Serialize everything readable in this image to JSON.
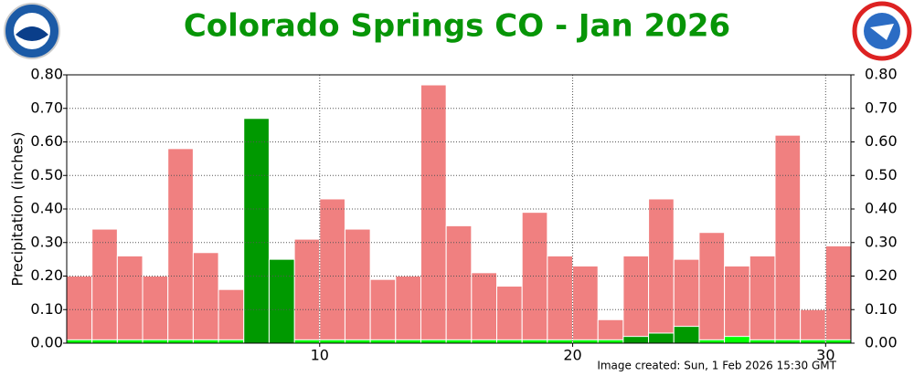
{
  "chart_data": {
    "type": "bar",
    "title": "Colorado Springs CO - Jan 2026",
    "y_label": "Precipitation (inches)",
    "footer": "Image created: Sun, 1 Feb 2026 15:30 GMT",
    "x": [
      1,
      2,
      3,
      4,
      5,
      6,
      7,
      8,
      9,
      10,
      11,
      12,
      13,
      14,
      15,
      16,
      17,
      18,
      19,
      20,
      21,
      22,
      23,
      24,
      25,
      26,
      27,
      28,
      29,
      30,
      31
    ],
    "xlim": [
      0,
      31
    ],
    "xticks": [
      10,
      20,
      30
    ],
    "ylim": [
      0,
      0.8
    ],
    "yticks": [
      {
        "value": 0,
        "label": "0.00"
      },
      {
        "value": 0.1,
        "label": "0.10"
      },
      {
        "value": 0.2,
        "label": "0.20"
      },
      {
        "value": 0.3,
        "label": "0.30"
      },
      {
        "value": 0.4,
        "label": "0.40"
      },
      {
        "value": 0.5,
        "label": "0.50"
      },
      {
        "value": 0.6,
        "label": "0.60"
      },
      {
        "value": 0.7,
        "label": "0.70"
      },
      {
        "value": 0.8,
        "label": "0.80"
      }
    ],
    "grid": true,
    "series": [
      {
        "color": "#f08080",
        "values": [
          0.2,
          0.34,
          0.26,
          0.2,
          0.58,
          0.27,
          0.16,
          null,
          null,
          0.31,
          0.43,
          0.34,
          0.19,
          0.2,
          0.77,
          0.35,
          0.21,
          0.17,
          0.39,
          0.26,
          0.23,
          0.07,
          0.26,
          0.43,
          0.25,
          0.33,
          0.23,
          0.26,
          0.62,
          0.1,
          0.29
        ]
      },
      {
        "color": "#00ff00",
        "values": [
          0.01,
          0.01,
          0.01,
          0.01,
          0.01,
          0.01,
          0.01,
          null,
          null,
          0.01,
          0.01,
          0.01,
          0.01,
          0.01,
          0.01,
          0.01,
          0.01,
          0.01,
          0.01,
          0.01,
          0.01,
          0.01,
          null,
          null,
          null,
          0.01,
          0.02,
          0.01,
          0.01,
          0.01,
          0.01
        ]
      },
      {
        "color": "#009900",
        "values": [
          null,
          null,
          null,
          null,
          null,
          null,
          null,
          0.67,
          0.25,
          null,
          null,
          null,
          null,
          null,
          null,
          null,
          null,
          null,
          null,
          null,
          null,
          null,
          0.02,
          0.03,
          0.05,
          null,
          null,
          null,
          null,
          null,
          null
        ]
      }
    ]
  }
}
